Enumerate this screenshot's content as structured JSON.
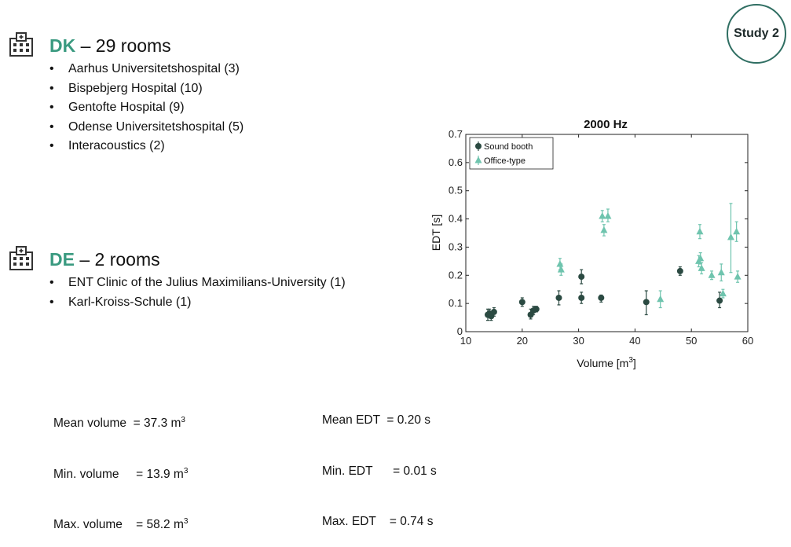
{
  "badge": {
    "label": "Study 2"
  },
  "sections": [
    {
      "code": "DK",
      "rest": " – 29 rooms",
      "icon": "hospital-icon",
      "items": [
        "Aarhus Universitetshospital (3)",
        "Bispebjerg Hospital (10)",
        "Gentofte Hospital (9)",
        "Odense Universitetshospital (5)",
        "Interacoustics (2)"
      ]
    },
    {
      "code": "DE",
      "rest": " – 2 rooms",
      "icon": "hospital-icon",
      "items": [
        "ENT Clinic of the Julius Maximilians-University (1)",
        "Karl-Kroiss-Schule (1)"
      ]
    }
  ],
  "stats_left": [
    {
      "label": "Mean volume",
      "eq": "  = ",
      "value": "37.3 m",
      "sup": "3"
    },
    {
      "label": "Min. volume",
      "eq": "     = ",
      "value": "13.9 m",
      "sup": "3"
    },
    {
      "label": "Max. volume",
      "eq": "    = ",
      "value": "58.2 m",
      "sup": "3"
    }
  ],
  "stats_right": [
    {
      "label": "Mean EDT",
      "eq": "  = ",
      "value": "0.20 s"
    },
    {
      "label": "Min. EDT",
      "eq": "      = ",
      "value": "0.01 s"
    },
    {
      "label": "Max. EDT",
      "eq": "    = ",
      "value": "0.74 s"
    }
  ],
  "colors": {
    "accent": "#3a9a80",
    "sound_booth": "#2b4a42",
    "office_type": "#6fc4ae"
  },
  "chart_data": {
    "type": "scatter",
    "title": "2000 Hz",
    "xlabel": "Volume [m",
    "xlabel_sup": "3",
    "xlabel_end": "]",
    "ylabel": "EDT [s]",
    "xlim": [
      10,
      60
    ],
    "ylim": [
      0,
      0.7
    ],
    "xticks": [
      10,
      20,
      30,
      40,
      50,
      60
    ],
    "yticks": [
      0,
      0.1,
      0.2,
      0.3,
      0.4,
      0.5,
      0.6,
      0.7
    ],
    "legend_position": "top-left",
    "grid": false,
    "series": [
      {
        "name": "Sound booth",
        "marker": "circle",
        "color": "#2b4a42",
        "points": [
          {
            "x": 13.9,
            "y": 0.06,
            "lo": 0.04,
            "hi": 0.08
          },
          {
            "x": 14.5,
            "y": 0.055,
            "lo": 0.04,
            "hi": 0.07
          },
          {
            "x": 15.0,
            "y": 0.07,
            "lo": 0.055,
            "hi": 0.085
          },
          {
            "x": 14.2,
            "y": 0.065,
            "lo": 0.05,
            "hi": 0.08
          },
          {
            "x": 20.0,
            "y": 0.105,
            "lo": 0.09,
            "hi": 0.12
          },
          {
            "x": 21.5,
            "y": 0.06,
            "lo": 0.045,
            "hi": 0.08
          },
          {
            "x": 22.0,
            "y": 0.075,
            "lo": 0.06,
            "hi": 0.09
          },
          {
            "x": 22.5,
            "y": 0.08,
            "lo": 0.07,
            "hi": 0.09
          },
          {
            "x": 26.5,
            "y": 0.12,
            "lo": 0.095,
            "hi": 0.145
          },
          {
            "x": 30.5,
            "y": 0.195,
            "lo": 0.17,
            "hi": 0.22
          },
          {
            "x": 30.5,
            "y": 0.12,
            "lo": 0.1,
            "hi": 0.14
          },
          {
            "x": 34.0,
            "y": 0.12,
            "lo": 0.105,
            "hi": 0.13
          },
          {
            "x": 42.0,
            "y": 0.105,
            "lo": 0.06,
            "hi": 0.145
          },
          {
            "x": 48.0,
            "y": 0.215,
            "lo": 0.2,
            "hi": 0.23
          },
          {
            "x": 55.0,
            "y": 0.11,
            "lo": 0.085,
            "hi": 0.14
          }
        ]
      },
      {
        "name": "Office-type",
        "marker": "triangle",
        "color": "#6fc4ae",
        "points": [
          {
            "x": 26.7,
            "y": 0.24,
            "lo": 0.22,
            "hi": 0.26
          },
          {
            "x": 26.9,
            "y": 0.22,
            "lo": 0.2,
            "hi": 0.24
          },
          {
            "x": 34.2,
            "y": 0.41,
            "lo": 0.39,
            "hi": 0.43
          },
          {
            "x": 35.2,
            "y": 0.41,
            "lo": 0.39,
            "hi": 0.435
          },
          {
            "x": 34.5,
            "y": 0.36,
            "lo": 0.34,
            "hi": 0.38
          },
          {
            "x": 44.5,
            "y": 0.115,
            "lo": 0.085,
            "hi": 0.145
          },
          {
            "x": 51.5,
            "y": 0.355,
            "lo": 0.33,
            "hi": 0.38
          },
          {
            "x": 51.3,
            "y": 0.25,
            "lo": 0.23,
            "hi": 0.27
          },
          {
            "x": 51.6,
            "y": 0.26,
            "lo": 0.24,
            "hi": 0.28
          },
          {
            "x": 51.8,
            "y": 0.225,
            "lo": 0.205,
            "hi": 0.245
          },
          {
            "x": 53.6,
            "y": 0.2,
            "lo": 0.185,
            "hi": 0.215
          },
          {
            "x": 55.3,
            "y": 0.21,
            "lo": 0.18,
            "hi": 0.24
          },
          {
            "x": 55.6,
            "y": 0.135,
            "lo": 0.12,
            "hi": 0.15
          },
          {
            "x": 57.0,
            "y": 0.335,
            "lo": 0.21,
            "hi": 0.455
          },
          {
            "x": 58.0,
            "y": 0.355,
            "lo": 0.32,
            "hi": 0.39
          },
          {
            "x": 58.2,
            "y": 0.195,
            "lo": 0.175,
            "hi": 0.215
          }
        ]
      }
    ]
  }
}
